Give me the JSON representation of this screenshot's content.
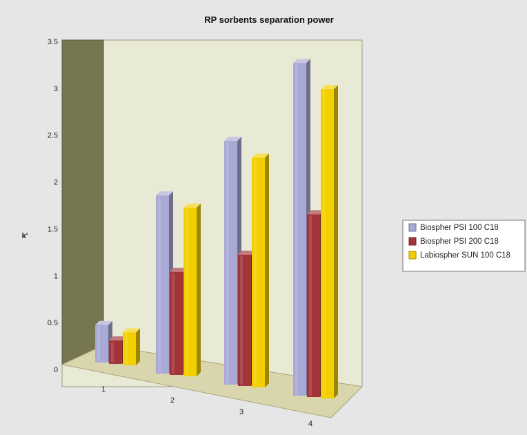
{
  "chart_data": {
    "type": "bar",
    "title": "RP sorbents separation power",
    "ylabel": "k'",
    "xlabel": "",
    "ylim": [
      0,
      3.5
    ],
    "yticks": [
      "0",
      "0.5",
      "1",
      "1.5",
      "2",
      "2.5",
      "3",
      "3.5"
    ],
    "categories": [
      "1",
      "2",
      "3",
      "4"
    ],
    "series": [
      {
        "name": "Biospher PSI 100 C18",
        "color": "#a9a9d6",
        "values": [
          0.4,
          1.9,
          2.6,
          3.55
        ]
      },
      {
        "name": "Biospher PSI 200 C18",
        "color": "#a3343a",
        "values": [
          0.25,
          1.1,
          1.4,
          1.95
        ]
      },
      {
        "name": "Labiospher SUN 100 C18",
        "color": "#f2d000",
        "values": [
          0.35,
          1.8,
          2.45,
          3.3
        ]
      }
    ],
    "legend_position": "right",
    "grid": false
  }
}
